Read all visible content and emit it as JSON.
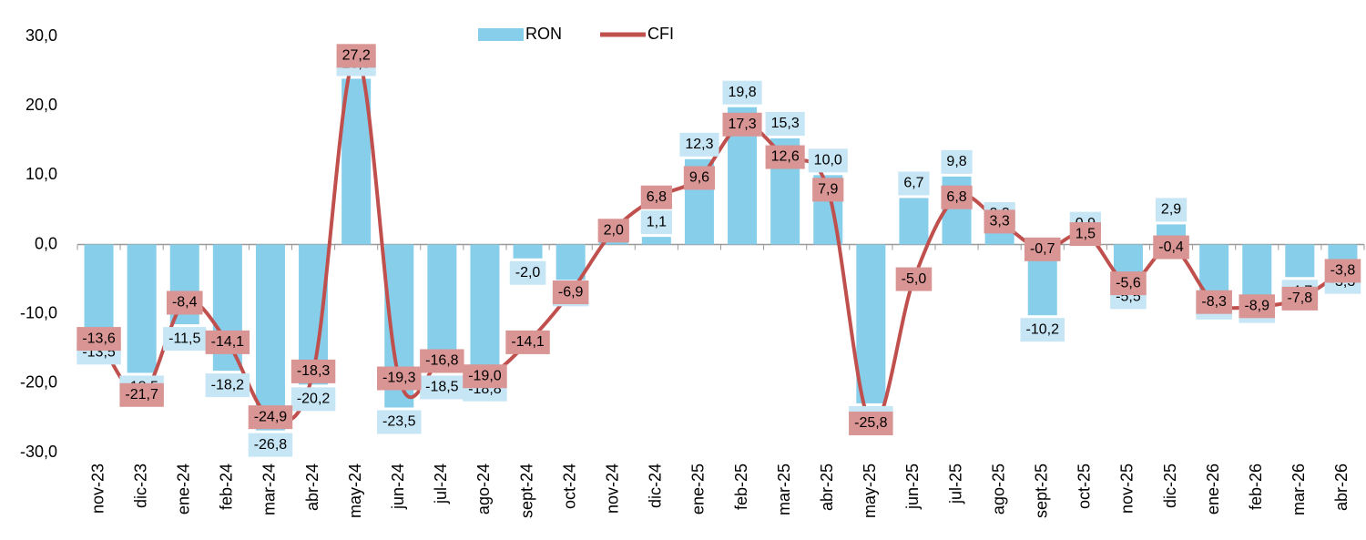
{
  "chart_data": {
    "type": "bar_line",
    "categories": [
      "nov-23",
      "dic-23",
      "ene-24",
      "feb-24",
      "mar-24",
      "abr-24",
      "may-24",
      "jun-24",
      "jul-24",
      "ago-24",
      "sept-24",
      "oct-24",
      "nov-24",
      "dic-24",
      "ene-25",
      "feb-25",
      "mar-25",
      "abr-25",
      "may-25",
      "jun-25",
      "jul-25",
      "ago-25",
      "sept-25",
      "oct-25",
      "nov-25",
      "dic-25",
      "ene-26",
      "feb-26",
      "mar-26",
      "abr-26"
    ],
    "series": [
      {
        "name": "RON",
        "type": "bar",
        "color": "#87ceeb",
        "values": [
          -13.5,
          -18.5,
          -11.5,
          -18.2,
          -26.8,
          -20.2,
          23.9,
          -23.5,
          -18.5,
          -18.8,
          -2.0,
          -5.1,
          2.4,
          1.1,
          12.3,
          19.8,
          15.3,
          10.0,
          -22.9,
          6.7,
          9.8,
          2.3,
          -10.2,
          0.9,
          -5.5,
          2.9,
          -7.0,
          -7.5,
          -4.7,
          -3.3
        ],
        "value_labels": [
          "-13,5",
          "-18,5",
          "-11,5",
          "-18,2",
          "-26,8",
          "-20,2",
          "23,9",
          "-23,5",
          "-18,5",
          "-18,8",
          "-2,0",
          "-5,1",
          null,
          "1,1",
          "12,3",
          "19,8",
          "15,3",
          "10,0",
          "-22,9",
          "6,7",
          "9,8",
          "2,3",
          "-10,2",
          "0,9",
          "-5,5",
          "2,9",
          "-7,0",
          "-7,5",
          "-4,7",
          "-3,3"
        ]
      },
      {
        "name": "CFI",
        "type": "line",
        "color": "#c0504d",
        "values": [
          -13.6,
          -21.7,
          -8.4,
          -14.1,
          -24.9,
          -18.3,
          27.2,
          -19.3,
          -16.8,
          -19.0,
          -14.1,
          -6.9,
          2.0,
          6.8,
          9.6,
          17.3,
          12.6,
          7.9,
          -25.8,
          -5.0,
          6.8,
          3.3,
          -0.7,
          1.5,
          -5.6,
          -0.4,
          -8.3,
          -8.9,
          -7.8,
          -3.8
        ],
        "value_labels": [
          "-13,6",
          "-21,7",
          "-8,4",
          "-14,1",
          "-24,9",
          "-18,3",
          "27,2",
          "-19,3",
          "-16,8",
          "-19,0",
          "-14,1",
          "-6,9",
          "2,0",
          "6,8",
          "9,6",
          "17,3",
          "12,6",
          "7,9",
          "-25,8",
          "-5,0",
          "6,8",
          "3,3",
          "-0,7",
          "1,5",
          "-5,6",
          "-0,4",
          "-8,3",
          "-8,9",
          "-7,8",
          "-3,8"
        ]
      }
    ],
    "ylim": [
      -30,
      30
    ],
    "yticks": [
      {
        "value": -30,
        "label": "-30,0"
      },
      {
        "value": -20,
        "label": "-20,0"
      },
      {
        "value": -10,
        "label": "-10,0"
      },
      {
        "value": 0,
        "label": "0,0"
      },
      {
        "value": 10,
        "label": "10,0"
      },
      {
        "value": 20,
        "label": "20,0"
      },
      {
        "value": 30,
        "label": "30,0"
      }
    ],
    "grid": false,
    "legend": "top"
  }
}
